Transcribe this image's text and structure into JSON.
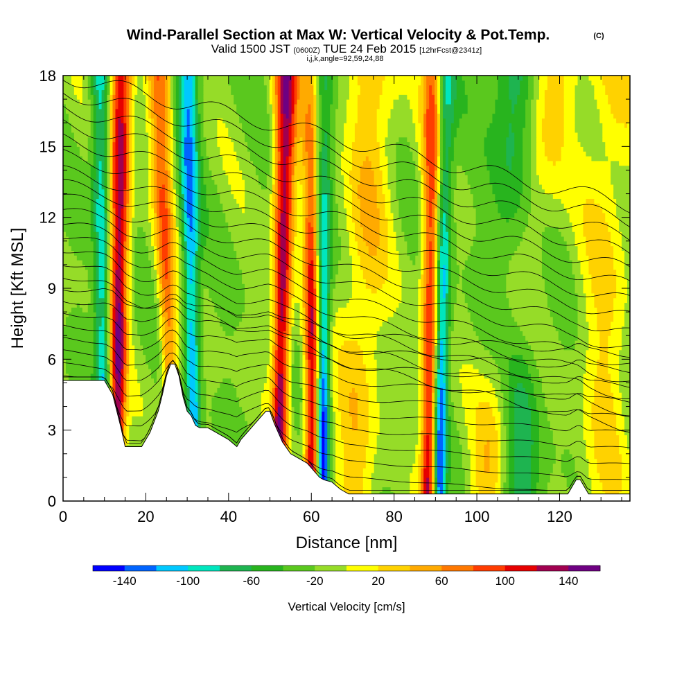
{
  "title": {
    "main": "Wind-Parallel Section at Max W: Vertical Velocity & Pot.Temp.",
    "main_badge": "(C)",
    "line2_a": "Valid 1500 JST",
    "line2_b": "(0600Z)",
    "line2_c": "TUE 24 Feb 2015",
    "line2_d": "[12hrFcst@2341z]",
    "line3": "i,j,k,angle=92,59,24,88"
  },
  "chart_data": {
    "type": "heatmap",
    "description_fields": "filled contours of vertical velocity with potential temperature contour lines and terrain",
    "xlabel": "Distance [nm]",
    "ylabel": "Height [Kft MSL]",
    "xlim": [
      0,
      137
    ],
    "ylim": [
      0,
      18
    ],
    "x_ticks": [
      0,
      20,
      40,
      60,
      80,
      100,
      120
    ],
    "y_ticks": [
      0,
      3,
      6,
      9,
      12,
      15,
      18
    ],
    "terrain": {
      "x": [
        0,
        10,
        12,
        13,
        14,
        15,
        17,
        19,
        21,
        23,
        24,
        25,
        26,
        27,
        28,
        29,
        30,
        31,
        32,
        33,
        35,
        37,
        39,
        40,
        42,
        43,
        45,
        46,
        48,
        49,
        50,
        51,
        52,
        53,
        55,
        57,
        59,
        60,
        61,
        62,
        63,
        65,
        67,
        69,
        71,
        75,
        80,
        85,
        90,
        95,
        100,
        105,
        110,
        115,
        120,
        122,
        123,
        124,
        125,
        126,
        127,
        128,
        130,
        132,
        135,
        137
      ],
      "y": [
        5.1,
        5.1,
        4.5,
        3.8,
        3.1,
        2.3,
        2.3,
        2.3,
        2.9,
        3.8,
        4.5,
        5.3,
        5.8,
        5.8,
        5.3,
        4.4,
        3.8,
        3.6,
        3.2,
        3.1,
        3.1,
        2.9,
        2.7,
        2.6,
        2.3,
        2.6,
        3.0,
        3.2,
        3.6,
        3.8,
        3.8,
        3.3,
        2.9,
        2.5,
        2.0,
        1.8,
        1.6,
        1.4,
        1.2,
        1.0,
        0.9,
        0.8,
        0.5,
        0.3,
        0.3,
        0.3,
        0.3,
        0.3,
        0.3,
        0.3,
        0.3,
        0.3,
        0.3,
        0.3,
        0.3,
        0.3,
        0.6,
        0.9,
        0.9,
        0.6,
        0.3,
        0.3,
        0.3,
        0.3,
        0.3,
        0.3
      ]
    },
    "vertical_velocity_plumes": [
      {
        "x_base": 13,
        "x_top": 14,
        "sign": "up",
        "peak": 150
      },
      {
        "x_base": 10,
        "x_top": 9,
        "sign": "down",
        "peak": -80
      },
      {
        "x_base": 27,
        "x_top": 23,
        "sign": "up",
        "peak": 90
      },
      {
        "x_base": 32,
        "x_top": 30,
        "sign": "down",
        "peak": -100
      },
      {
        "x_base": 52,
        "x_top": 54,
        "sign": "up",
        "peak": 150
      },
      {
        "x_base": 60,
        "x_top": 61,
        "sign": "up",
        "peak": 150
      },
      {
        "x_base": 63,
        "x_top": 62,
        "sign": "down",
        "peak": -140
      },
      {
        "x_base": 88,
        "x_top": 90,
        "sign": "up",
        "peak": 130
      },
      {
        "x_base": 91,
        "x_top": 92,
        "sign": "down",
        "peak": -110
      },
      {
        "x_base": 70,
        "x_top": 75,
        "sign": "up",
        "peak": 50
      },
      {
        "x_base": 102,
        "x_top": 118,
        "sign": "up",
        "peak": 50
      },
      {
        "x_base": 110,
        "x_top": 109,
        "sign": "down",
        "peak": -60
      },
      {
        "x_base": 130,
        "x_top": 132,
        "sign": "up",
        "peak": 40
      }
    ],
    "colorbar": {
      "title": "Vertical Velocity [cm/s]",
      "bounds": [
        -160,
        -140,
        -120,
        -100,
        -80,
        -60,
        -40,
        -20,
        0,
        20,
        40,
        60,
        80,
        100,
        120,
        140,
        160
      ],
      "colors": [
        "#0000ff",
        "#0064ff",
        "#00c8ff",
        "#00e6be",
        "#1eb450",
        "#28b41e",
        "#5ac81e",
        "#96dc28",
        "#ffff00",
        "#ffd200",
        "#ffaa00",
        "#ff7800",
        "#ff3c00",
        "#e60000",
        "#a00050",
        "#6e0082"
      ],
      "tick_labels": [
        "-140",
        "-100",
        "-60",
        "-20",
        "20",
        "60",
        "100",
        "140"
      ],
      "tick_values": [
        -140,
        -100,
        -60,
        -20,
        20,
        60,
        100,
        140
      ]
    }
  }
}
